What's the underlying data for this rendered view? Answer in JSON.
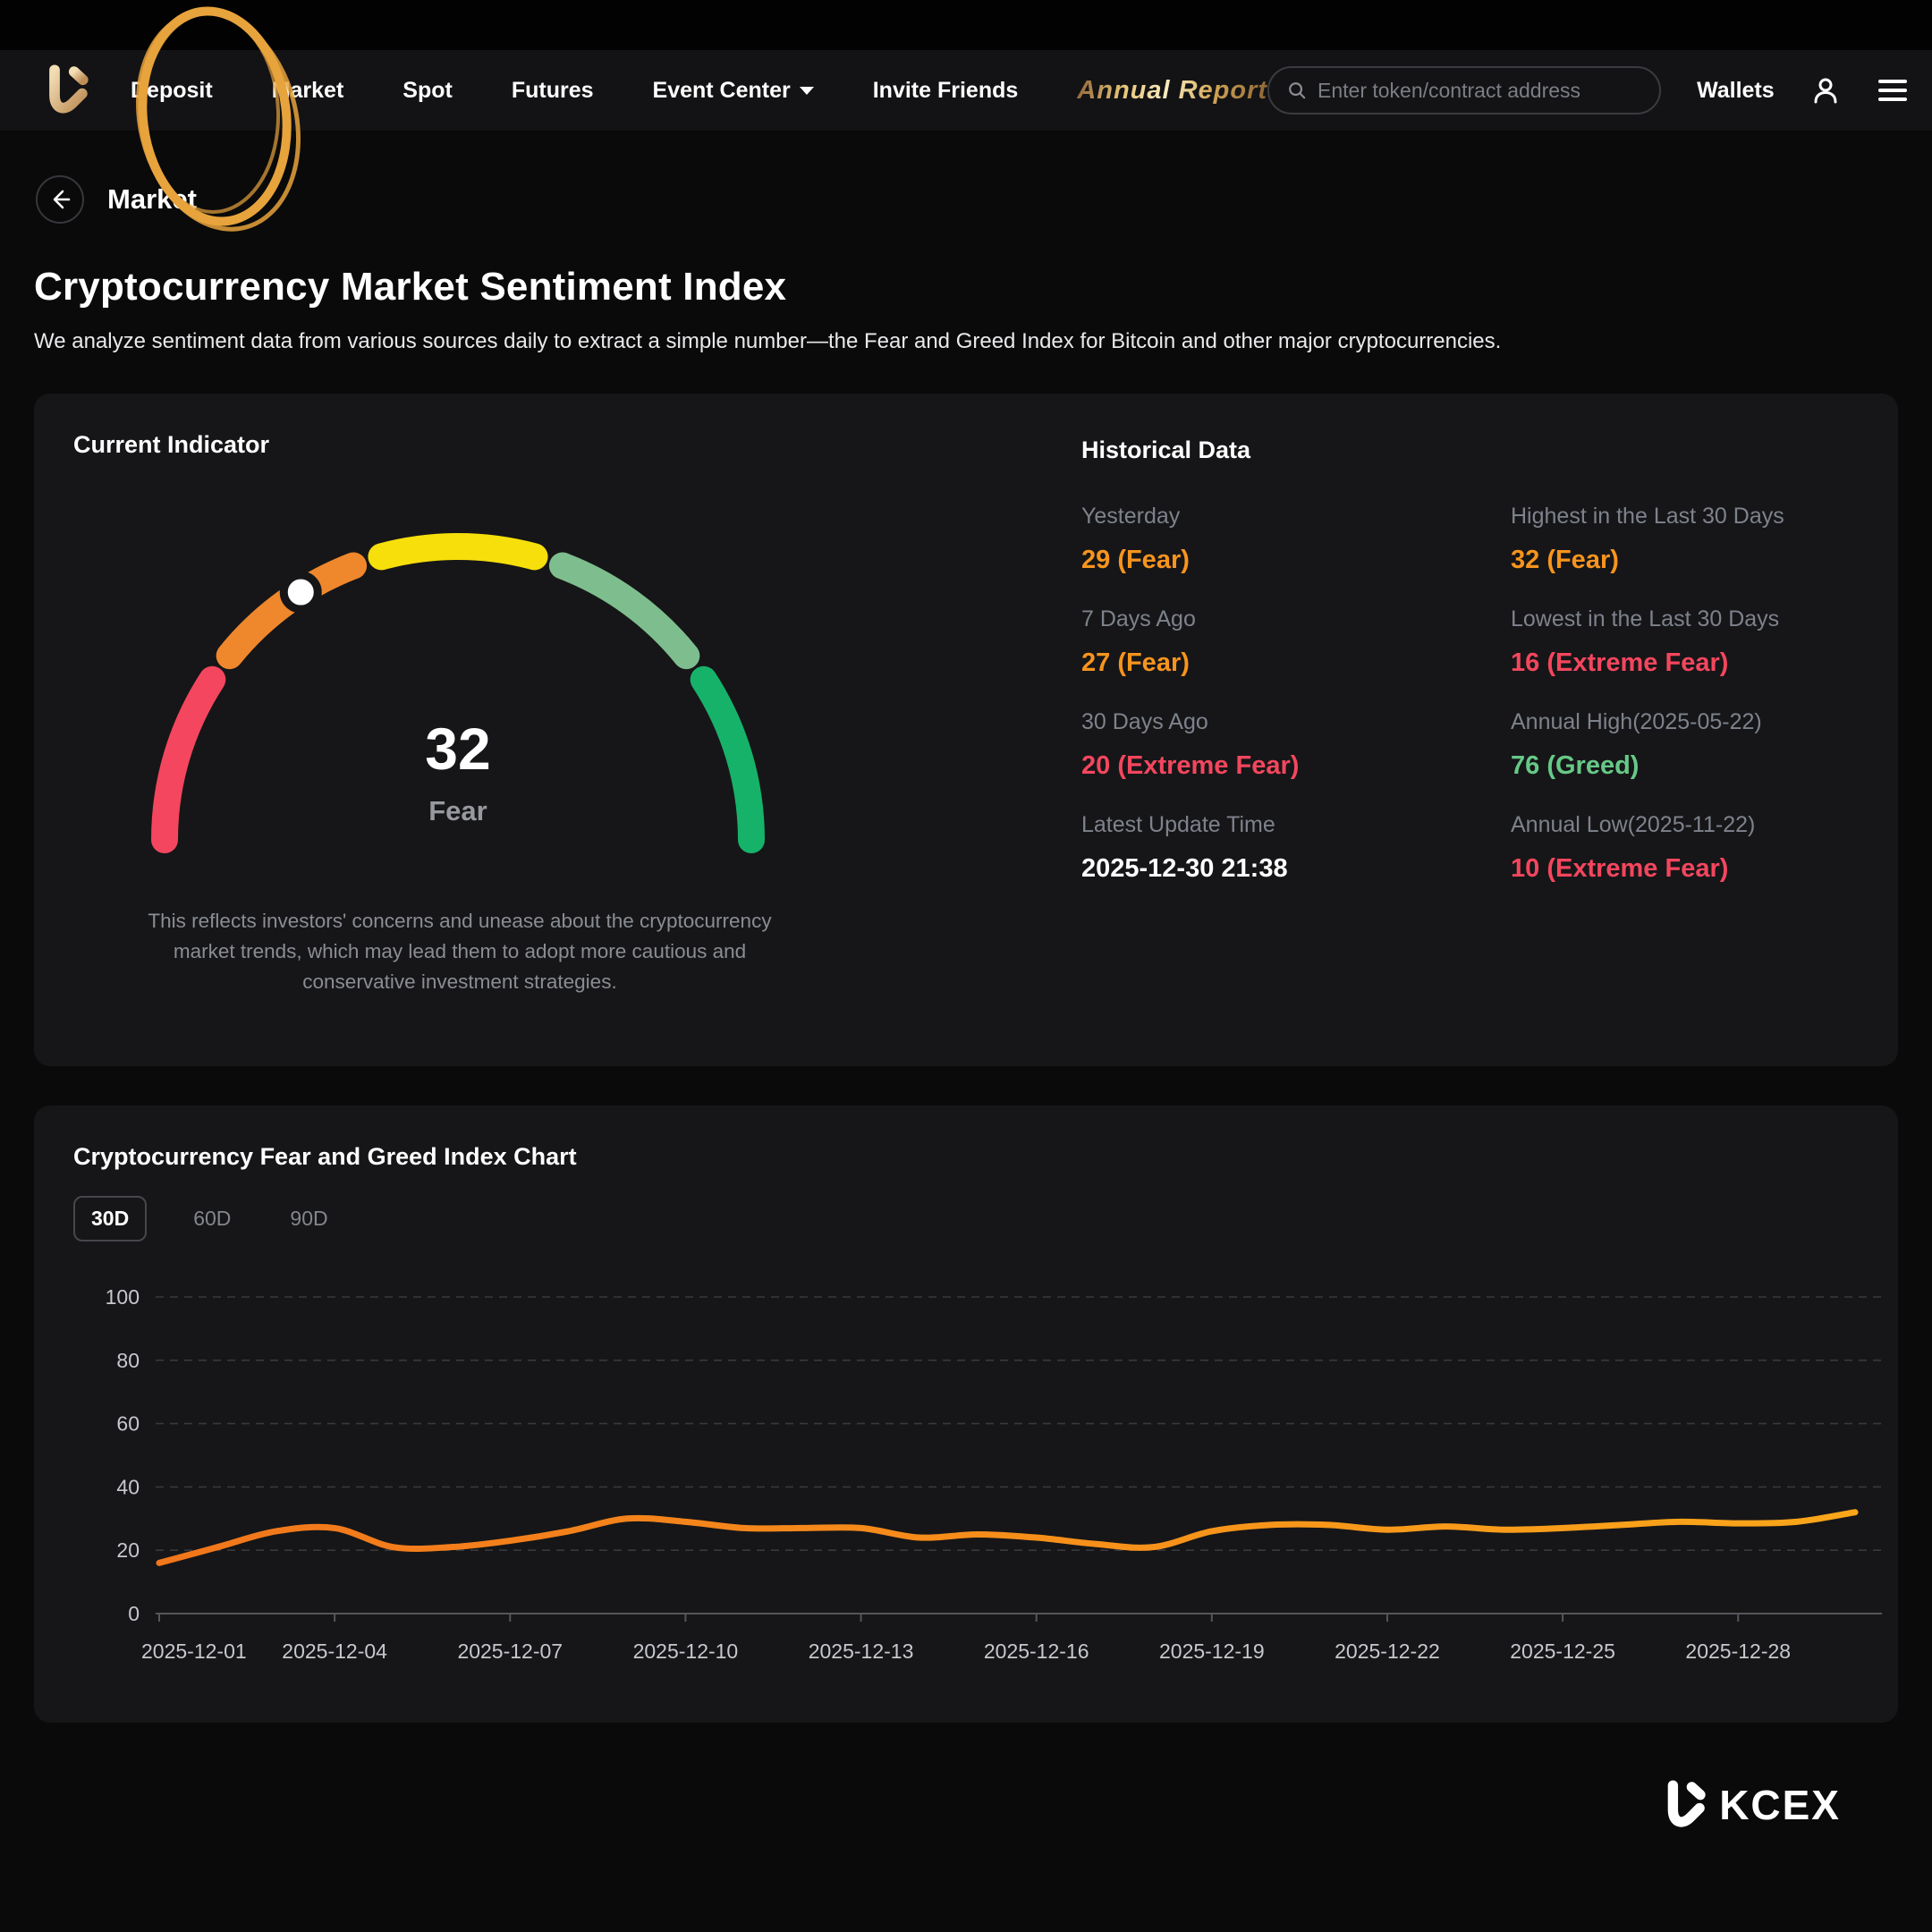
{
  "nav": {
    "items": [
      {
        "label": "Deposit"
      },
      {
        "label": "Market"
      },
      {
        "label": "Spot"
      },
      {
        "label": "Futures"
      },
      {
        "label": "Event Center",
        "has_caret": true
      },
      {
        "label": "Invite Friends"
      }
    ],
    "annual_report": "Annual Report",
    "search_placeholder": "Enter token/contract address",
    "wallets": "Wallets"
  },
  "annotation": {
    "shape": "hand-drawn-circle",
    "target": "Market nav item",
    "color": "#E7A33C"
  },
  "page": {
    "breadcrumb_title": "Market",
    "title": "Cryptocurrency Market Sentiment Index",
    "description": "We analyze sentiment data from various sources daily to extract a simple number—the Fear and Greed Index for Bitcoin and other major cryptocurrencies."
  },
  "indicator": {
    "section_title": "Current Indicator",
    "value": "32",
    "label": "Fear",
    "description": "This reflects investors' concerns and unease about the cryptocurrency market trends, which may lead them to adopt more cautious and conservative investment strategies.",
    "gauge": {
      "min": 0,
      "max": 100,
      "pointer_value": 32,
      "pointer_color": "#FFFFFF",
      "segments": [
        {
          "from": 0,
          "to": 20,
          "color": "#F4465E"
        },
        {
          "from": 20,
          "to": 40,
          "color": "#EF872D"
        },
        {
          "from": 40,
          "to": 60,
          "color": "#F6DF0B"
        },
        {
          "from": 60,
          "to": 80,
          "color": "#7EBE8E"
        },
        {
          "from": 80,
          "to": 100,
          "color": "#17B26A"
        }
      ]
    }
  },
  "historical": {
    "section_title": "Historical Data",
    "left": [
      {
        "label": "Yesterday",
        "value": "29 (Fear)",
        "color": "#F7941E"
      },
      {
        "label": "7 Days Ago",
        "value": "27 (Fear)",
        "color": "#F7941E"
      },
      {
        "label": "30 Days Ago",
        "value": "20 (Extreme Fear)",
        "color": "#F4465E"
      },
      {
        "label": "Latest Update Time",
        "value": "2025-12-30 21:38",
        "color": "#FFFFFF"
      }
    ],
    "right": [
      {
        "label": "Highest in the Last 30 Days",
        "value": "32 (Fear)",
        "color": "#F7941E"
      },
      {
        "label": "Lowest in the Last 30 Days",
        "value": "16 (Extreme Fear)",
        "color": "#F4465E"
      },
      {
        "label": "Annual High(2025-05-22)",
        "value": "76 (Greed)",
        "color": "#66C987"
      },
      {
        "label": "Annual Low(2025-11-22)",
        "value": "10 (Extreme Fear)",
        "color": "#F4465E"
      }
    ]
  },
  "chart": {
    "title": "Cryptocurrency Fear and Greed Index Chart",
    "tabs": [
      {
        "label": "30D",
        "active": true
      },
      {
        "label": "60D",
        "active": false
      },
      {
        "label": "90D",
        "active": false
      }
    ]
  },
  "chart_data": {
    "type": "line",
    "title": "Cryptocurrency Fear and Greed Index Chart",
    "x": [
      "2025-12-01",
      "2025-12-02",
      "2025-12-03",
      "2025-12-04",
      "2025-12-05",
      "2025-12-06",
      "2025-12-07",
      "2025-12-08",
      "2025-12-09",
      "2025-12-10",
      "2025-12-11",
      "2025-12-12",
      "2025-12-13",
      "2025-12-14",
      "2025-12-15",
      "2025-12-16",
      "2025-12-17",
      "2025-12-18",
      "2025-12-19",
      "2025-12-20",
      "2025-12-21",
      "2025-12-22",
      "2025-12-23",
      "2025-12-24",
      "2025-12-25",
      "2025-12-26",
      "2025-12-27",
      "2025-12-28",
      "2025-12-29",
      "2025-12-30"
    ],
    "values": [
      16,
      21,
      26,
      27,
      21,
      21,
      23,
      26,
      30,
      29,
      27,
      27,
      27,
      24,
      25,
      24,
      22,
      21,
      26,
      28,
      28,
      26.5,
      27.5,
      26.5,
      27,
      28,
      29,
      28.5,
      29,
      32
    ],
    "x_tick_labels": [
      "2025-12-01",
      "2025-12-04",
      "2025-12-07",
      "2025-12-10",
      "2025-12-13",
      "2025-12-16",
      "2025-12-19",
      "2025-12-22",
      "2025-12-25",
      "2025-12-28"
    ],
    "y_ticks": [
      0,
      20,
      40,
      60,
      80,
      100
    ],
    "ylim": [
      0,
      100
    ],
    "grid": "dashed-horizontal",
    "legend": "none",
    "line_color_start": "#F2761B",
    "line_color_end": "#FAA61A"
  },
  "footer": {
    "brand": "KCEX"
  }
}
